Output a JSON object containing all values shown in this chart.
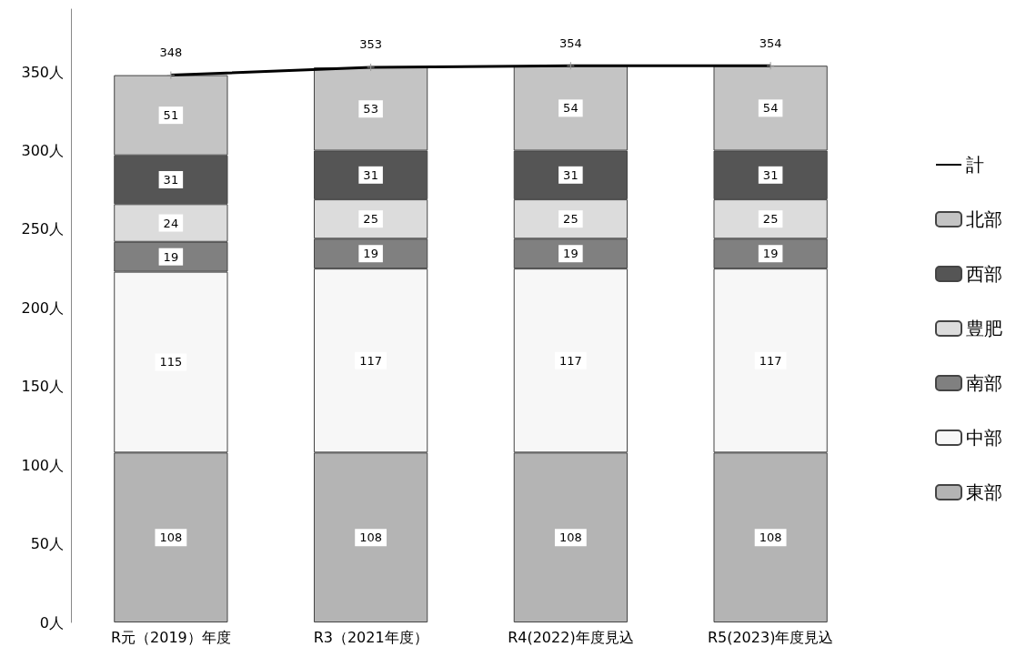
{
  "chart_data": {
    "type": "bar",
    "stacked": true,
    "categories": [
      "R元（2019）年度",
      "R3（2021年度）",
      "R4(2022)年度見込",
      "R5(2023)年度見込"
    ],
    "series": [
      {
        "name": "東部",
        "color": "#b4b4b4",
        "values": [
          108,
          108,
          108,
          108
        ]
      },
      {
        "name": "中部",
        "color": "#f7f7f7",
        "values": [
          115,
          117,
          117,
          117
        ]
      },
      {
        "name": "南部",
        "color": "#808080",
        "values": [
          19,
          19,
          19,
          19
        ]
      },
      {
        "name": "豊肥",
        "color": "#dcdcdc",
        "values": [
          24,
          25,
          25,
          25
        ]
      },
      {
        "name": "西部",
        "color": "#555555",
        "values": [
          31,
          31,
          31,
          31
        ]
      },
      {
        "name": "北部",
        "color": "#c4c4c4",
        "values": [
          51,
          53,
          54,
          54
        ]
      },
      {
        "name": "計",
        "type": "line",
        "color": "#000000",
        "values": [
          348,
          353,
          354,
          354
        ]
      }
    ],
    "ylim": [
      0,
      390
    ],
    "yticks": [
      {
        "value": 0,
        "label": "0人"
      },
      {
        "value": 50,
        "label": "50人"
      },
      {
        "value": 100,
        "label": "100人"
      },
      {
        "value": 150,
        "label": "150人"
      },
      {
        "value": 200,
        "label": "200人"
      },
      {
        "value": 250,
        "label": "250人"
      },
      {
        "value": 300,
        "label": "300人"
      },
      {
        "value": 350,
        "label": "350人"
      }
    ],
    "grid": false,
    "legend": "right",
    "marker": "cross",
    "data_labels": true
  }
}
